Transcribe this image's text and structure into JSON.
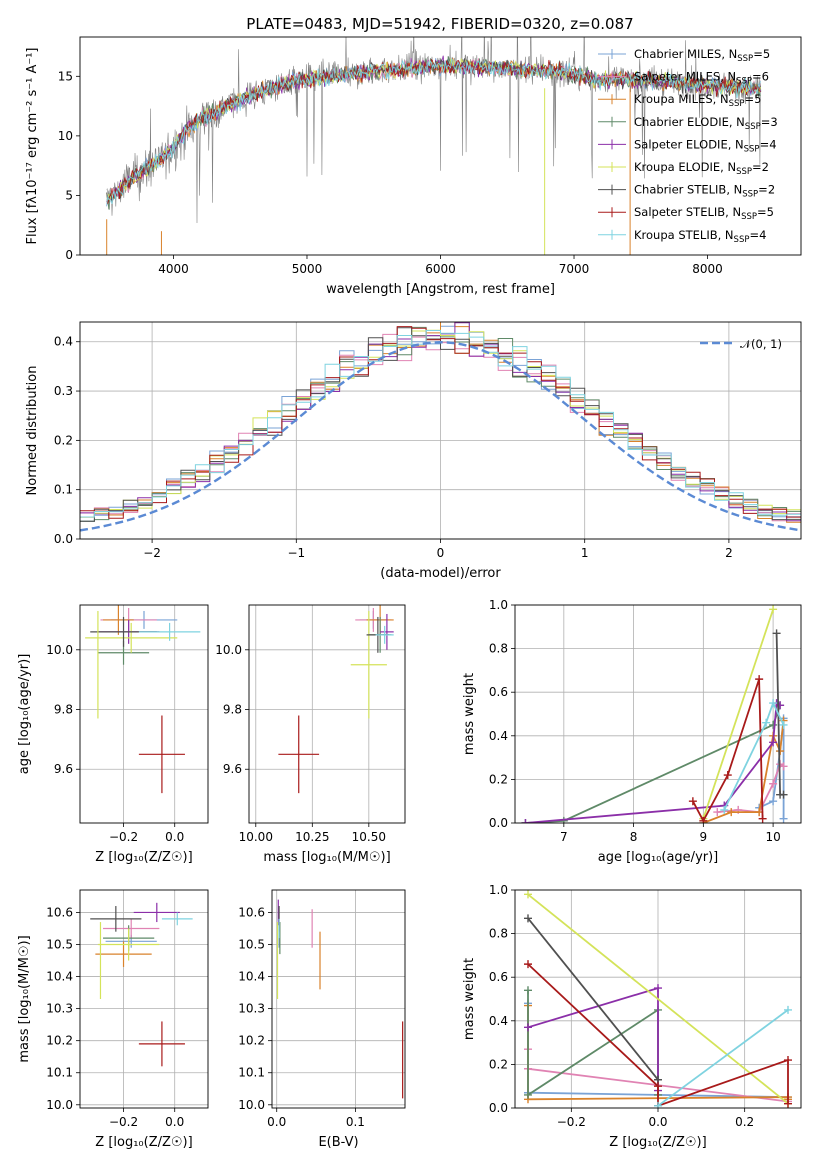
{
  "figure": {
    "title": "PLATE=0483, MJD=51942, FIBERID=0320, z=0.087"
  },
  "colors": {
    "Chabrier MILES": "#7aa3d6",
    "Salpeter MILES": "#e083b3",
    "Kroupa MILES": "#d9822b",
    "Chabrier ELODIE": "#5f8a68",
    "Salpeter ELODIE": "#8b2fa8",
    "Kroupa ELODIE": "#d4e35a",
    "Chabrier STELIB": "#505050",
    "Salpeter STELIB": "#a81a1a",
    "Kroupa STELIB": "#7fd3e0",
    "data": "#808080",
    "normal": "#5b8ad4"
  },
  "chart_data": [
    {
      "id": "spectrum",
      "type": "line",
      "title": "PLATE=0483, MJD=51942, FIBERID=0320, z=0.087",
      "xlabel": "wavelength [Angstrom, rest frame]",
      "ylabel": "Flux [fλ10⁻¹⁷ erg cm⁻² s⁻¹ A⁻¹]",
      "xlim": [
        3300,
        8700
      ],
      "ylim": [
        0,
        18.3
      ],
      "xticks": [
        "4000",
        "5000",
        "6000",
        "7000",
        "8000"
      ],
      "yticks": [
        "0",
        "5",
        "10",
        "15"
      ],
      "grid": false,
      "legend_position": "top-right",
      "legend": [
        {
          "name": "Chabrier MILES",
          "sub": "SSP",
          "n": "5"
        },
        {
          "name": "Salpeter MILES",
          "sub": "SSP",
          "n": "6"
        },
        {
          "name": "Kroupa MILES",
          "sub": "SSP",
          "n": "5"
        },
        {
          "name": "Chabrier ELODIE",
          "sub": "SSP",
          "n": "3"
        },
        {
          "name": "Salpeter ELODIE",
          "sub": "SSP",
          "n": "4"
        },
        {
          "name": "Kroupa ELODIE",
          "sub": "SSP",
          "n": "2"
        },
        {
          "name": "Chabrier STELIB",
          "sub": "SSP",
          "n": "2"
        },
        {
          "name": "Salpeter STELIB",
          "sub": "SSP",
          "n": "5"
        },
        {
          "name": "Kroupa STELIB",
          "sub": "SSP",
          "n": "4"
        }
      ],
      "continuum": [
        [
          3500,
          4.5
        ],
        [
          3600,
          5.5
        ],
        [
          3700,
          6.5
        ],
        [
          3800,
          7.2
        ],
        [
          3900,
          8.0
        ],
        [
          4000,
          9.0
        ],
        [
          4100,
          10.5
        ],
        [
          4200,
          11.5
        ],
        [
          4300,
          11.8
        ],
        [
          4400,
          12.5
        ],
        [
          4600,
          13.5
        ],
        [
          4800,
          14.3
        ],
        [
          5000,
          14.8
        ],
        [
          5200,
          15.0
        ],
        [
          5500,
          15.4
        ],
        [
          5800,
          15.7
        ],
        [
          6000,
          15.9
        ],
        [
          6300,
          15.8
        ],
        [
          6600,
          15.6
        ],
        [
          6900,
          15.4
        ],
        [
          7200,
          14.6
        ],
        [
          7400,
          14.8
        ],
        [
          7600,
          14.6
        ],
        [
          8000,
          14.3
        ],
        [
          8200,
          14.1
        ],
        [
          8400,
          14.0
        ]
      ]
    },
    {
      "id": "residuals",
      "type": "histogram",
      "xlabel": "(data-model)/error",
      "ylabel": "Normed distribution",
      "xlim": [
        -2.5,
        2.5
      ],
      "ylim": [
        0,
        0.44
      ],
      "xticks": [
        "−2",
        "−1",
        "0",
        "1",
        "2"
      ],
      "yticks": [
        "0.0",
        "0.1",
        "0.2",
        "0.3",
        "0.4"
      ],
      "grid": true,
      "bin_width": 0.1,
      "legend": [
        {
          "name": "𝒩(0, 1)"
        }
      ],
      "legend_position": "top-right"
    },
    {
      "id": "age-vs-Z",
      "type": "scatter",
      "xlabel": "Z [log₁₀(Z/Z☉)]",
      "ylabel": "age  [log₁₀(age/yr)]",
      "xlim": [
        -0.37,
        0.13
      ],
      "ylim": [
        9.42,
        10.15
      ],
      "xticks": [
        "−0.2",
        "0.0"
      ],
      "yticks": [
        "9.6",
        "9.8",
        "10.0"
      ],
      "grid": true,
      "points": [
        {
          "model": "Chabrier MILES",
          "x": -0.12,
          "y": 10.1,
          "xerr": 0.13,
          "yerr": 0.03
        },
        {
          "model": "Salpeter MILES",
          "x": -0.18,
          "y": 10.1,
          "xerr": 0.11,
          "yerr": 0.04
        },
        {
          "model": "Kroupa MILES",
          "x": -0.22,
          "y": 10.1,
          "xerr": 0.06,
          "yerr": 0.05
        },
        {
          "model": "Chabrier ELODIE",
          "x": -0.2,
          "y": 9.99,
          "xerr": 0.1,
          "yerr": 0.04
        },
        {
          "model": "Salpeter ELODIE",
          "x": -0.18,
          "y": 10.06,
          "xerr": 0.12,
          "yerr": 0.04
        },
        {
          "model": "Kroupa ELODIE",
          "x": -0.17,
          "y": 10.04,
          "xerr": 0.18,
          "yerr": 0.05
        },
        {
          "model": "Chabrier STELIB",
          "x": -0.2,
          "y": 10.06,
          "xerr": 0.13,
          "yerr": 0.05
        },
        {
          "model": "Salpeter STELIB",
          "x": -0.05,
          "y": 9.65,
          "xerr": 0.09,
          "yerr": 0.13
        },
        {
          "model": "Kroupa STELIB",
          "x": -0.02,
          "y": 10.06,
          "xerr": 0.12,
          "yerr": 0.03
        },
        {
          "model": "Kroupa ELODIE",
          "x": -0.3,
          "y": 9.95,
          "xerr": 0.0,
          "yerr": 0.18
        }
      ]
    },
    {
      "id": "age-vs-mass",
      "type": "scatter",
      "xlabel": "mass [log₁₀(M/M☉)]",
      "xlim": [
        9.97,
        10.66
      ],
      "ylim": [
        9.42,
        10.15
      ],
      "xticks": [
        "10.00",
        "10.25",
        "10.50"
      ],
      "yticks": [
        "9.6",
        "9.8",
        "10.0"
      ],
      "grid": true,
      "points": [
        {
          "model": "Chabrier MILES",
          "x": 10.52,
          "y": 10.1,
          "xerr": 0.06,
          "yerr": 0.03
        },
        {
          "model": "Salpeter MILES",
          "x": 10.52,
          "y": 10.1,
          "xerr": 0.08,
          "yerr": 0.04
        },
        {
          "model": "Kroupa MILES",
          "x": 10.55,
          "y": 10.1,
          "xerr": 0.06,
          "yerr": 0.05
        },
        {
          "model": "Chabrier ELODIE",
          "x": 10.55,
          "y": 10.05,
          "xerr": 0.05,
          "yerr": 0.06
        },
        {
          "model": "Salpeter ELODIE",
          "x": 10.58,
          "y": 10.06,
          "xerr": 0.03,
          "yerr": 0.06
        },
        {
          "model": "Kroupa ELODIE",
          "x": 10.5,
          "y": 9.95,
          "xerr": 0.08,
          "yerr": 0.18
        },
        {
          "model": "Chabrier STELIB",
          "x": 10.54,
          "y": 10.05,
          "xerr": 0.05,
          "yerr": 0.06
        },
        {
          "model": "Salpeter STELIB",
          "x": 10.19,
          "y": 9.65,
          "xerr": 0.09,
          "yerr": 0.13
        },
        {
          "model": "Kroupa STELIB",
          "x": 10.57,
          "y": 10.05,
          "xerr": 0.04,
          "yerr": 0.03
        }
      ]
    },
    {
      "id": "weight-vs-age",
      "type": "line",
      "xlabel": "age  [log₁₀(age/yr)]",
      "ylabel": "mass weight",
      "xlim": [
        6.3,
        10.4
      ],
      "ylim": [
        0,
        1.0
      ],
      "xticks": [
        "7",
        "8",
        "9",
        "10"
      ],
      "yticks": [
        "0.0",
        "0.2",
        "0.4",
        "0.6",
        "0.8",
        "1.0"
      ],
      "grid": true,
      "series": [
        {
          "model": "Chabrier MILES",
          "x": [
            9.8,
            10.0,
            10.1,
            10.15,
            10.15
          ],
          "y": [
            0.07,
            0.1,
            0.33,
            0.48,
            0.02
          ]
        },
        {
          "model": "Salpeter MILES",
          "x": [
            9.2,
            9.5,
            9.8,
            10.0,
            10.1,
            10.15
          ],
          "y": [
            0.05,
            0.06,
            0.05,
            0.18,
            0.27,
            0.26
          ]
        },
        {
          "model": "Kroupa MILES",
          "x": [
            9.0,
            9.4,
            9.8,
            10.0,
            10.1,
            10.15
          ],
          "y": [
            0.0,
            0.05,
            0.05,
            0.4,
            0.33,
            0.47
          ]
        },
        {
          "model": "Chabrier ELODIE",
          "x": [
            6.45,
            7.0,
            10.0,
            10.1
          ],
          "y": [
            0.0,
            0.01,
            0.45,
            0.54
          ]
        },
        {
          "model": "Salpeter ELODIE",
          "x": [
            6.45,
            9.3,
            10.0,
            10.05,
            10.1
          ],
          "y": [
            0.0,
            0.08,
            0.37,
            0.55,
            0.54
          ]
        },
        {
          "model": "Kroupa ELODIE",
          "x": [
            9.0,
            10.0
          ],
          "y": [
            0.02,
            0.98
          ]
        },
        {
          "model": "Chabrier STELIB",
          "x": [
            10.05,
            10.1,
            10.15
          ],
          "y": [
            0.87,
            0.13,
            0.13
          ]
        },
        {
          "model": "Salpeter STELIB",
          "x": [
            8.85,
            9.0,
            9.35,
            9.8,
            9.85
          ],
          "y": [
            0.1,
            0.01,
            0.22,
            0.66,
            0.02
          ]
        },
        {
          "model": "Kroupa STELIB",
          "x": [
            9.3,
            9.9,
            10.0,
            10.15
          ],
          "y": [
            0.06,
            0.46,
            0.55,
            0.45
          ]
        }
      ]
    },
    {
      "id": "mass-vs-Z",
      "type": "scatter",
      "xlabel": "Z [log₁₀(Z/Z☉)]",
      "ylabel": "mass [log₁₀(M/M☉)]",
      "xlim": [
        -0.37,
        0.13
      ],
      "ylim": [
        9.99,
        10.67
      ],
      "xticks": [
        "−0.2",
        "0.0"
      ],
      "yticks": [
        "10.0",
        "10.1",
        "10.2",
        "10.3",
        "10.4",
        "10.5",
        "10.6"
      ],
      "grid": true,
      "points": [
        {
          "model": "Chabrier MILES",
          "x": -0.17,
          "y": 10.51,
          "xerr": 0.1,
          "yerr": 0.02
        },
        {
          "model": "Salpeter MILES",
          "x": -0.17,
          "y": 10.55,
          "xerr": 0.11,
          "yerr": 0.03
        },
        {
          "model": "Kroupa MILES",
          "x": -0.2,
          "y": 10.47,
          "xerr": 0.11,
          "yerr": 0.04
        },
        {
          "model": "Chabrier ELODIE",
          "x": -0.18,
          "y": 10.52,
          "xerr": 0.1,
          "yerr": 0.04
        },
        {
          "model": "Salpeter ELODIE",
          "x": -0.07,
          "y": 10.6,
          "xerr": 0.09,
          "yerr": 0.03
        },
        {
          "model": "Kroupa ELODIE",
          "x": -0.18,
          "y": 10.5,
          "xerr": 0.12,
          "yerr": 0.05
        },
        {
          "model": "Chabrier STELIB",
          "x": -0.23,
          "y": 10.58,
          "xerr": 0.1,
          "yerr": 0.04
        },
        {
          "model": "Salpeter STELIB",
          "x": -0.05,
          "y": 10.19,
          "xerr": 0.09,
          "yerr": 0.07
        },
        {
          "model": "Kroupa STELIB",
          "x": 0.01,
          "y": 10.58,
          "xerr": 0.06,
          "yerr": 0.02
        },
        {
          "model": "Kroupa ELODIE",
          "x": -0.29,
          "y": 10.45,
          "xerr": 0.0,
          "yerr": 0.12
        }
      ]
    },
    {
      "id": "mass-vs-ebv",
      "type": "scatter",
      "xlabel": "E(B-V)",
      "xlim": [
        -0.006,
        0.163
      ],
      "ylim": [
        9.99,
        10.67
      ],
      "xticks": [
        "0.0",
        "0.1"
      ],
      "yticks": [
        "10.0",
        "10.1",
        "10.2",
        "10.3",
        "10.4",
        "10.5",
        "10.6"
      ],
      "grid": true,
      "points": [
        {
          "model": "Chabrier MILES",
          "x": 0.003,
          "y": 10.53,
          "xerr": 0.0,
          "yerr": 0.04
        },
        {
          "model": "Salpeter MILES",
          "x": 0.045,
          "y": 10.55,
          "xerr": 0.0,
          "yerr": 0.06
        },
        {
          "model": "Kroupa MILES",
          "x": 0.055,
          "y": 10.45,
          "xerr": 0.0,
          "yerr": 0.09
        },
        {
          "model": "Chabrier ELODIE",
          "x": 0.004,
          "y": 10.52,
          "xerr": 0.0,
          "yerr": 0.05
        },
        {
          "model": "Salpeter ELODIE",
          "x": 0.002,
          "y": 10.6,
          "xerr": 0.0,
          "yerr": 0.04
        },
        {
          "model": "Kroupa ELODIE",
          "x": 0.001,
          "y": 10.45,
          "xerr": 0.0,
          "yerr": 0.12
        },
        {
          "model": "Chabrier STELIB",
          "x": 0.003,
          "y": 10.58,
          "xerr": 0.0,
          "yerr": 0.04
        },
        {
          "model": "Salpeter STELIB",
          "x": 0.16,
          "y": 10.14,
          "xerr": 0.0,
          "yerr": 0.12
        },
        {
          "model": "Kroupa STELIB",
          "x": 0.003,
          "y": 10.55,
          "xerr": 0.0,
          "yerr": 0.03
        }
      ]
    },
    {
      "id": "weight-vs-Z",
      "type": "line",
      "xlabel": "Z [log₁₀(Z/Z☉)]",
      "ylabel": "mass weight",
      "xlim": [
        -0.33,
        0.33
      ],
      "ylim": [
        0,
        1.0
      ],
      "xticks": [
        "−0.2",
        "0.0",
        "0.2"
      ],
      "yticks": [
        "0.0",
        "0.2",
        "0.4",
        "0.6",
        "0.8",
        "1.0"
      ],
      "grid": true,
      "series": [
        {
          "model": "Chabrier MILES",
          "x": [
            -0.3,
            -0.3,
            0.3
          ],
          "y": [
            0.48,
            0.07,
            0.05
          ]
        },
        {
          "model": "Salpeter MILES",
          "x": [
            -0.3,
            -0.3,
            0.3
          ],
          "y": [
            0.27,
            0.18,
            0.03
          ]
        },
        {
          "model": "Kroupa MILES",
          "x": [
            -0.3,
            -0.3,
            0.3,
            0.3
          ],
          "y": [
            0.47,
            0.04,
            0.05,
            0.04
          ]
        },
        {
          "model": "Chabrier ELODIE",
          "x": [
            -0.3,
            -0.3,
            0.0,
            0.0
          ],
          "y": [
            0.54,
            0.06,
            0.45,
            0.06
          ]
        },
        {
          "model": "Salpeter ELODIE",
          "x": [
            -0.3,
            0.0,
            0.0
          ],
          "y": [
            0.37,
            0.55,
            0.08
          ]
        },
        {
          "model": "Kroupa ELODIE",
          "x": [
            -0.3,
            0.3
          ],
          "y": [
            0.98,
            0.02
          ]
        },
        {
          "model": "Chabrier STELIB",
          "x": [
            -0.3,
            0.0,
            0.0
          ],
          "y": [
            0.87,
            0.13,
            0.13
          ]
        },
        {
          "model": "Salpeter STELIB",
          "x": [
            -0.3,
            0.0,
            0.0,
            0.3,
            0.3
          ],
          "y": [
            0.66,
            0.1,
            0.01,
            0.22,
            0.02
          ]
        },
        {
          "model": "Kroupa STELIB",
          "x": [
            0.0,
            0.3
          ],
          "y": [
            0.01,
            0.45
          ]
        }
      ]
    }
  ]
}
